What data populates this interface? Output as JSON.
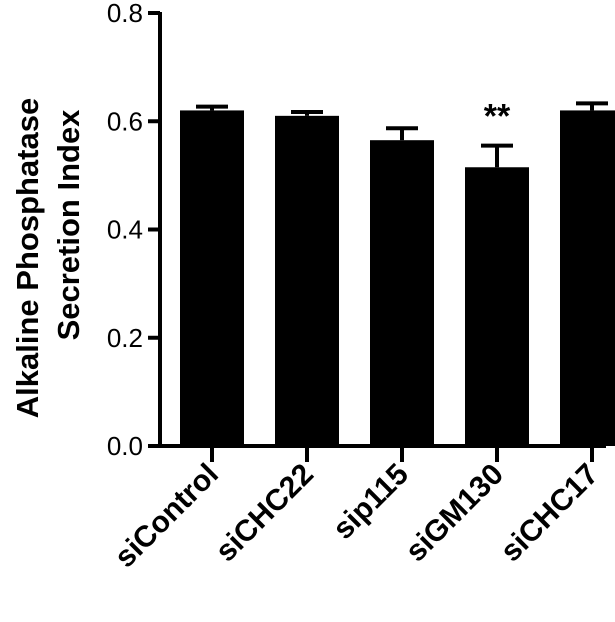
{
  "chart_data": {
    "type": "bar",
    "categories": [
      "siControl",
      "siCHC22",
      "sip115",
      "siGM130",
      "siCHC17"
    ],
    "values": [
      0.62,
      0.61,
      0.565,
      0.515,
      0.62
    ],
    "errors": [
      0.007,
      0.007,
      0.022,
      0.04,
      0.013
    ],
    "ylabel_lines": [
      "Alkaline Phosphatase",
      "Secretion Index"
    ],
    "xlabel": "",
    "ylim": [
      0,
      0.8
    ],
    "yticks": [
      0.0,
      0.2,
      0.4,
      0.6,
      0.8
    ],
    "ytick_labels": [
      "0.0",
      "0.2",
      "0.4",
      "0.6",
      "0.8"
    ],
    "annotations": [
      {
        "category": "siGM130",
        "text": "**"
      }
    ],
    "bar_color": "#000000",
    "grid": false
  }
}
